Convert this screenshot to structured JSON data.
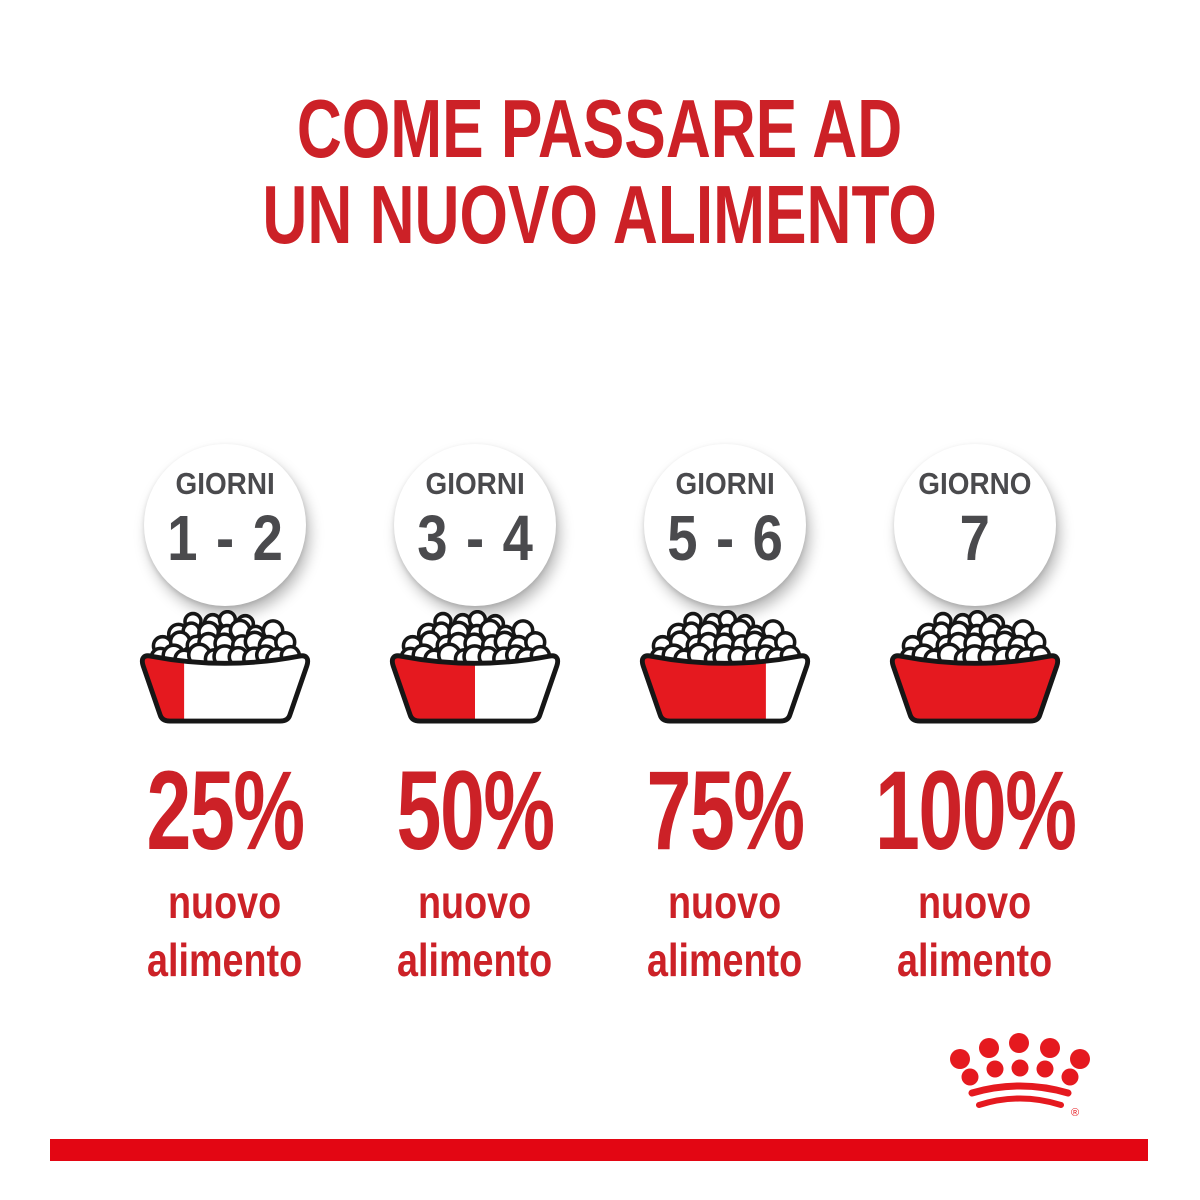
{
  "title": {
    "line1": "COME PASSARE AD",
    "line2": "UN NUOVO ALIMENTO"
  },
  "steps": [
    {
      "day_label": "GIORNI",
      "day_value": "1 - 2",
      "percent_label": "25%",
      "percent_value": 25,
      "description_lines": [
        "nuovo",
        "alimento"
      ]
    },
    {
      "day_label": "GIORNI",
      "day_value": "3 - 4",
      "percent_label": "50%",
      "percent_value": 50,
      "description_lines": [
        "nuovo",
        "alimento"
      ]
    },
    {
      "day_label": "GIORNI",
      "day_value": "5 - 6",
      "percent_label": "75%",
      "percent_value": 75,
      "description_lines": [
        "nuovo",
        "alimento"
      ]
    },
    {
      "day_label": "GIORNO",
      "day_value": "7",
      "percent_label": "100%",
      "percent_value": 100,
      "description_lines": [
        "nuovo",
        "alimento"
      ]
    }
  ],
  "icons": {
    "bowl": "dog-food-bowl-icon",
    "logo": "royal-canin-crown-logo"
  },
  "logo": {
    "registered_symbol": "®"
  },
  "colors": {
    "title_red": "#cc2127",
    "accent_red": "#e5191f",
    "bar_red": "#e30613",
    "day_gray": "#4a4a4d",
    "outline_black": "#161616"
  }
}
